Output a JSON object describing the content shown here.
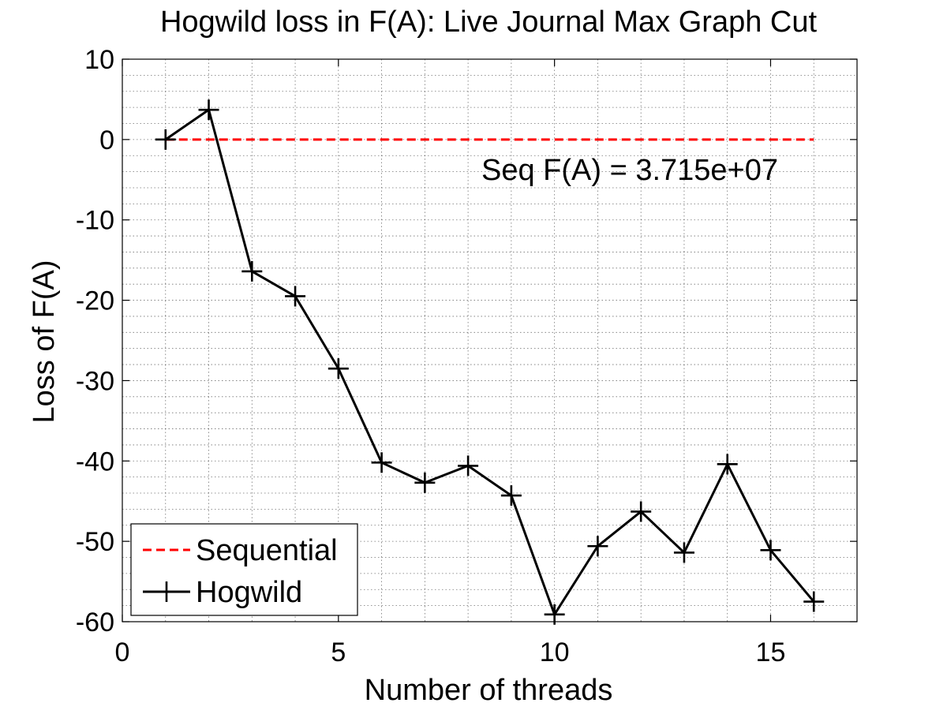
{
  "chart_data": {
    "type": "line",
    "title": "Hogwild loss in F(A): Live Journal Max Graph Cut",
    "xlabel": "Number of threads",
    "ylabel": "Loss of F(A)",
    "xlim": [
      0,
      17
    ],
    "ylim": [
      -60,
      10
    ],
    "xticks": [
      0,
      5,
      10,
      15
    ],
    "yticks": [
      10,
      0,
      -10,
      -20,
      -30,
      -40,
      -50,
      -60
    ],
    "grid": true,
    "legend_position": "bottom-left",
    "annotation": "Seq F(A) = 3.715e+07",
    "series": [
      {
        "name": "Sequential",
        "style": "dashed",
        "color": "#ff0000",
        "x": [
          1,
          16
        ],
        "y": [
          0,
          0
        ]
      },
      {
        "name": "Hogwild",
        "style": "solid",
        "marker": "plus",
        "color": "#000000",
        "x": [
          1,
          2,
          3,
          4,
          5,
          6,
          7,
          8,
          9,
          10,
          11,
          12,
          13,
          14,
          15,
          16
        ],
        "y": [
          0,
          3.7,
          -16.4,
          -19.5,
          -28.5,
          -40.2,
          -42.7,
          -40.6,
          -44.3,
          -59.1,
          -50.6,
          -46.3,
          -51.4,
          -40.4,
          -51.1,
          -57.5
        ]
      }
    ]
  }
}
